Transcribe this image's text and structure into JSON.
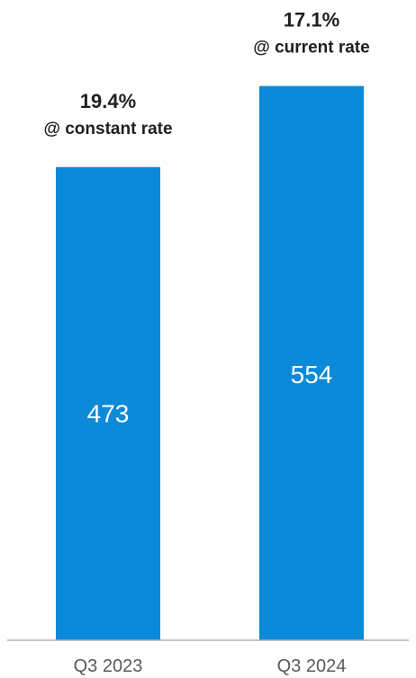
{
  "chart_data": {
    "type": "bar",
    "categories": [
      "Q3 2023",
      "Q3 2024"
    ],
    "values": [
      473,
      554
    ],
    "annotations": [
      {
        "pct": "19.4%",
        "note": "@ constant rate"
      },
      {
        "pct": "17.1%",
        "note": "@ current rate"
      }
    ],
    "ylim": [
      0,
      640
    ],
    "grid": false,
    "legend": "none",
    "colors": {
      "bar": "#0a8ad8",
      "axis": "#b3b3b3"
    }
  }
}
